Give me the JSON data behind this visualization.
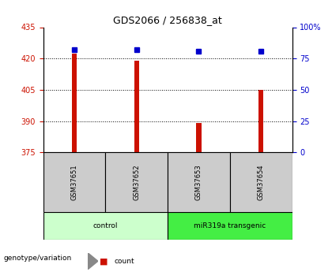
{
  "title": "GDS2066 / 256838_at",
  "samples": [
    "GSM37651",
    "GSM37652",
    "GSM37653",
    "GSM37654"
  ],
  "count_values": [
    422.5,
    419.0,
    389.0,
    405.0
  ],
  "percentile_values": [
    82,
    82,
    81,
    81
  ],
  "ylim_left": [
    375,
    435
  ],
  "ylim_right": [
    0,
    100
  ],
  "yticks_left": [
    375,
    390,
    405,
    420,
    435
  ],
  "yticks_right": [
    0,
    25,
    50,
    75,
    100
  ],
  "ytick_labels_right": [
    "0",
    "25",
    "50",
    "75",
    "100%"
  ],
  "bar_color": "#cc1100",
  "square_color": "#0000cc",
  "groups": [
    {
      "label": "control",
      "indices": [
        0,
        1
      ],
      "color": "#ccffcc"
    },
    {
      "label": "miR319a transgenic",
      "indices": [
        2,
        3
      ],
      "color": "#44ee44"
    }
  ],
  "sample_box_color": "#cccccc",
  "grid_color": "#000000",
  "bar_width": 0.08,
  "background_color": "#ffffff",
  "legend_count_color": "#cc1100",
  "legend_percentile_color": "#0000cc",
  "title_fontsize": 9,
  "tick_fontsize": 7,
  "label_fontsize": 6.5
}
